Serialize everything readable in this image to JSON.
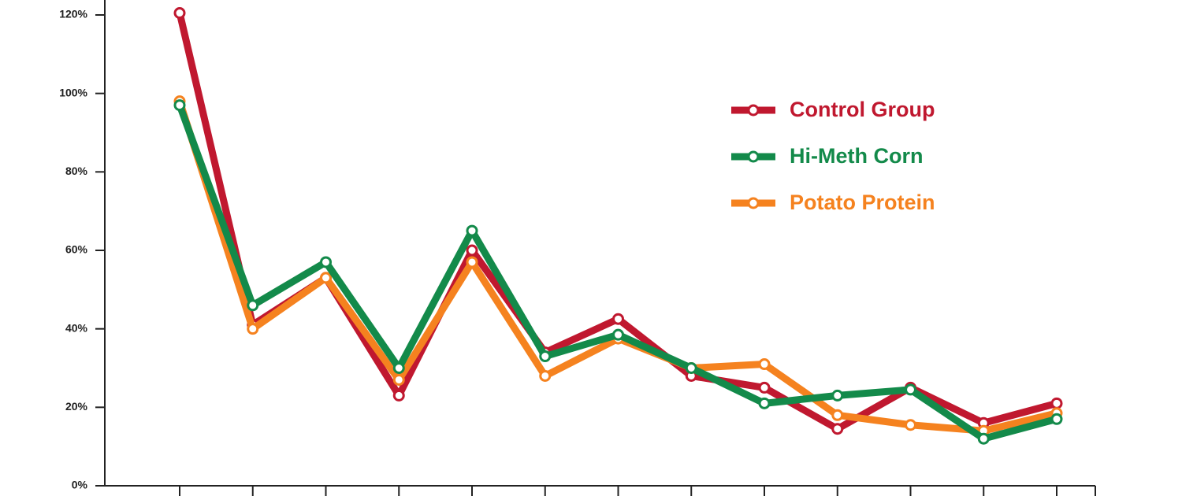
{
  "chart_data": {
    "type": "line",
    "categories": [
      null,
      null,
      null,
      null,
      null,
      null,
      null,
      null,
      null,
      null,
      null,
      null,
      null
    ],
    "series": [
      {
        "name": "Control Group",
        "color": "#c0182f",
        "values": [
          120.5,
          41,
          53,
          23,
          60,
          34,
          42.5,
          28,
          25,
          14.5,
          25,
          16,
          21
        ]
      },
      {
        "name": "Potato Protein",
        "color": "#f5821f",
        "values": [
          98,
          40,
          53,
          27,
          57,
          28,
          37.5,
          30,
          31,
          18,
          15.5,
          14,
          18.5
        ]
      },
      {
        "name": "Hi-Meth Corn",
        "color": "#138a4a",
        "values": [
          97,
          46,
          57,
          30,
          65,
          33,
          38.5,
          30,
          21,
          23,
          24.5,
          12,
          17
        ]
      }
    ],
    "ylim": [
      0,
      120
    ],
    "yticks": [
      {
        "value": 0,
        "label": "0%"
      },
      {
        "value": 20,
        "label": "20%"
      },
      {
        "value": 40,
        "label": "40%"
      },
      {
        "value": 60,
        "label": "60%"
      },
      {
        "value": 80,
        "label": "80%"
      },
      {
        "value": 100,
        "label": "100%"
      },
      {
        "value": 120,
        "label": "120%"
      }
    ],
    "legend_order": [
      "Control Group",
      "Hi-Meth Corn",
      "Potato Protein"
    ]
  }
}
